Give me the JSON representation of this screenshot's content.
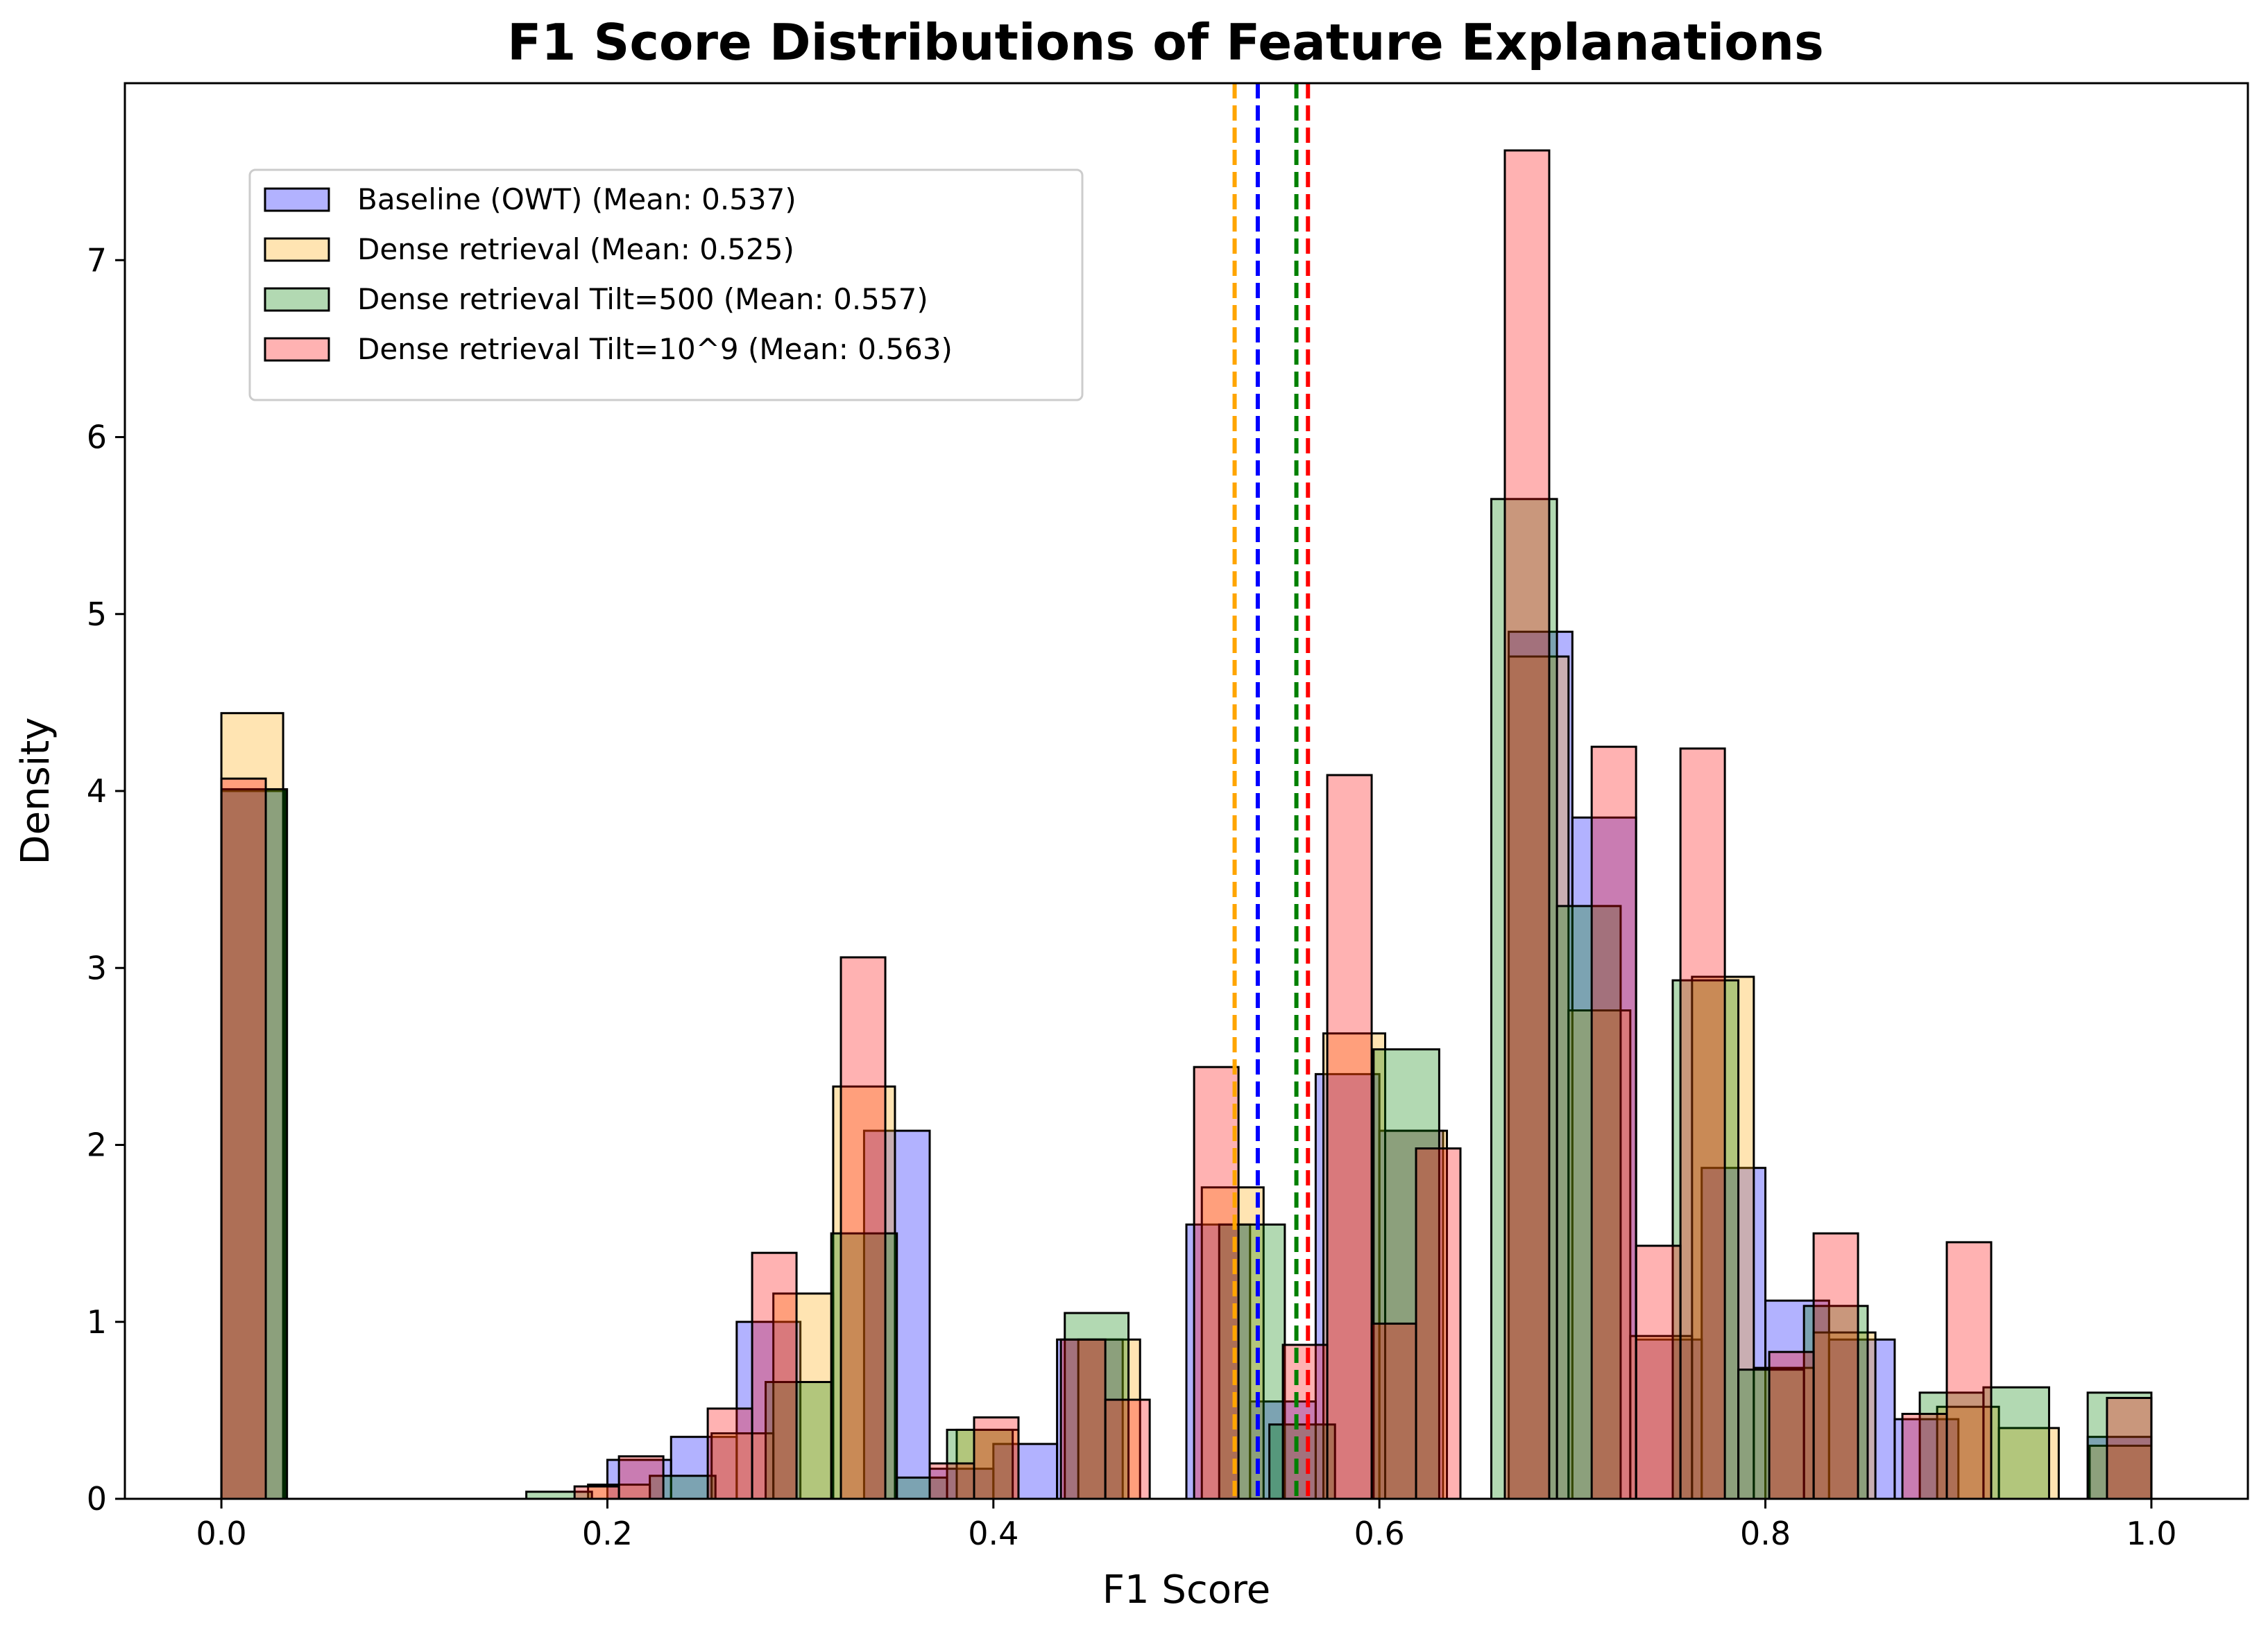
{
  "chart_data": {
    "type": "bar",
    "subtype": "histogram",
    "title": "F1 Score Distributions of Feature Explanations",
    "xlabel": "F1 Score",
    "ylabel": "Density",
    "xlim": [
      -0.05,
      1.05
    ],
    "ylim": [
      0,
      8
    ],
    "x_ticks": [
      "0.0",
      "0.2",
      "0.4",
      "0.6",
      "0.8",
      "1.0"
    ],
    "y_ticks": [
      "0",
      "1",
      "2",
      "3",
      "4",
      "5",
      "6",
      "7"
    ],
    "grid": false,
    "legend_position": "upper left",
    "series": [
      {
        "name": "Baseline (OWT) (Mean: 0.537)",
        "color": "#0000ff",
        "mean": 0.537,
        "mean_line_color": "#0000ff",
        "bins": [
          [
            0.0,
            0.033,
            4.0
          ],
          [
            0.2,
            0.233,
            0.22
          ],
          [
            0.233,
            0.267,
            0.35
          ],
          [
            0.267,
            0.3,
            1.0
          ],
          [
            0.333,
            0.367,
            2.08
          ],
          [
            0.367,
            0.4,
            0.17
          ],
          [
            0.4,
            0.433,
            0.31
          ],
          [
            0.433,
            0.467,
            0.9
          ],
          [
            0.5,
            0.533,
            1.55
          ],
          [
            0.533,
            0.567,
            0.55
          ],
          [
            0.567,
            0.6,
            2.4
          ],
          [
            0.6,
            0.633,
            2.08
          ],
          [
            0.667,
            0.7,
            4.9
          ],
          [
            0.7,
            0.733,
            3.85
          ],
          [
            0.733,
            0.767,
            0.9
          ],
          [
            0.767,
            0.8,
            1.87
          ],
          [
            0.8,
            0.833,
            1.12
          ],
          [
            0.833,
            0.867,
            0.9
          ],
          [
            0.867,
            0.9,
            0.45
          ],
          [
            0.967,
            1.0,
            0.35
          ]
        ]
      },
      {
        "name": "Dense retrieval (Mean: 0.525)",
        "color": "#ffa500",
        "mean": 0.525,
        "mean_line_color": "#ffa500",
        "bins": [
          [
            0.0,
            0.032,
            4.44
          ],
          [
            0.19,
            0.222,
            0.08
          ],
          [
            0.254,
            0.286,
            0.37
          ],
          [
            0.286,
            0.317,
            1.16
          ],
          [
            0.317,
            0.349,
            2.33
          ],
          [
            0.381,
            0.413,
            0.39
          ],
          [
            0.444,
            0.476,
            0.9
          ],
          [
            0.508,
            0.54,
            1.76
          ],
          [
            0.571,
            0.603,
            2.63
          ],
          [
            0.603,
            0.635,
            2.08
          ],
          [
            0.667,
            0.698,
            4.76
          ],
          [
            0.698,
            0.73,
            2.76
          ],
          [
            0.73,
            0.762,
            0.92
          ],
          [
            0.762,
            0.794,
            2.95
          ],
          [
            0.794,
            0.825,
            0.74
          ],
          [
            0.825,
            0.857,
            0.94
          ],
          [
            0.889,
            0.921,
            0.52
          ],
          [
            0.921,
            0.952,
            0.4
          ],
          [
            0.968,
            1.0,
            0.3
          ]
        ]
      },
      {
        "name": "Dense retrieval Tilt=500 (Mean: 0.557)",
        "color": "#008000",
        "mean": 0.557,
        "mean_line_color": "#008000",
        "bins": [
          [
            0.0,
            0.034,
            4.01
          ],
          [
            0.158,
            0.192,
            0.04
          ],
          [
            0.222,
            0.256,
            0.13
          ],
          [
            0.282,
            0.316,
            0.66
          ],
          [
            0.316,
            0.35,
            1.5
          ],
          [
            0.35,
            0.376,
            0.12
          ],
          [
            0.376,
            0.41,
            0.39
          ],
          [
            0.437,
            0.47,
            1.05
          ],
          [
            0.517,
            0.551,
            1.55
          ],
          [
            0.543,
            0.577,
            0.42
          ],
          [
            0.597,
            0.631,
            2.54
          ],
          [
            0.658,
            0.692,
            5.65
          ],
          [
            0.692,
            0.725,
            3.35
          ],
          [
            0.752,
            0.786,
            2.93
          ],
          [
            0.786,
            0.82,
            0.73
          ],
          [
            0.82,
            0.853,
            1.09
          ],
          [
            0.88,
            0.913,
            0.6
          ],
          [
            0.913,
            0.947,
            0.63
          ],
          [
            0.967,
            1.0,
            0.6
          ]
        ]
      },
      {
        "name": "Dense retrieval Tilt=10^9 (Mean: 0.563)",
        "color": "#ff0000",
        "mean": 0.563,
        "mean_line_color": "#ff0000",
        "bins": [
          [
            0.0,
            0.023,
            4.07
          ],
          [
            0.183,
            0.206,
            0.07
          ],
          [
            0.206,
            0.229,
            0.24
          ],
          [
            0.252,
            0.275,
            0.51
          ],
          [
            0.275,
            0.298,
            1.39
          ],
          [
            0.321,
            0.344,
            3.06
          ],
          [
            0.367,
            0.39,
            0.2
          ],
          [
            0.39,
            0.413,
            0.46
          ],
          [
            0.435,
            0.458,
            0.9
          ],
          [
            0.458,
            0.481,
            0.56
          ],
          [
            0.504,
            0.527,
            2.44
          ],
          [
            0.55,
            0.573,
            0.87
          ],
          [
            0.573,
            0.596,
            4.09
          ],
          [
            0.596,
            0.619,
            0.99
          ],
          [
            0.619,
            0.642,
            1.98
          ],
          [
            0.665,
            0.688,
            7.62
          ],
          [
            0.71,
            0.733,
            4.25
          ],
          [
            0.733,
            0.756,
            1.43
          ],
          [
            0.756,
            0.779,
            4.24
          ],
          [
            0.802,
            0.825,
            0.83
          ],
          [
            0.825,
            0.848,
            1.5
          ],
          [
            0.871,
            0.894,
            0.48
          ],
          [
            0.894,
            0.917,
            1.45
          ],
          [
            0.977,
            1.0,
            0.57
          ]
        ]
      }
    ]
  }
}
